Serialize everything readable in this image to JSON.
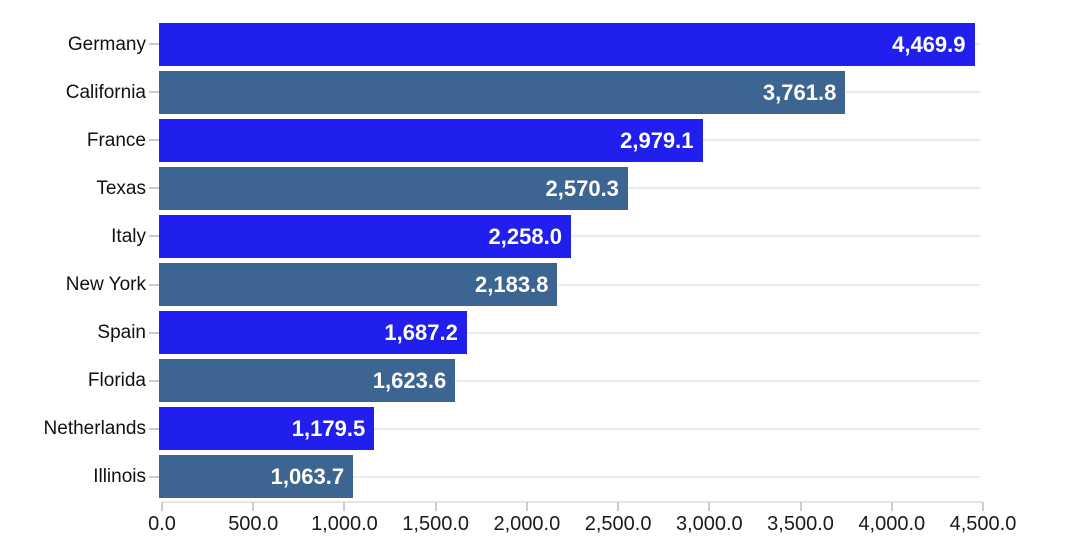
{
  "chart_data": {
    "type": "bar",
    "orientation": "horizontal",
    "title": "",
    "xlabel": "",
    "ylabel": "",
    "xlim": [
      0,
      4500
    ],
    "grid": "horizontal gridline at each category center, plot-width only",
    "legend": "none",
    "categories": [
      "Germany",
      "California",
      "France",
      "Texas",
      "Italy",
      "New York",
      "Spain",
      "Florida",
      "Netherlands",
      "Illinois"
    ],
    "values": [
      4469.9,
      3761.8,
      2979.1,
      2570.3,
      2258.0,
      2183.8,
      1687.2,
      1623.6,
      1179.5,
      1063.7
    ],
    "rows": [
      {
        "category": "Germany",
        "value": 4469.9,
        "value_label": "4,469.9",
        "group": "country"
      },
      {
        "category": "California",
        "value": 3761.8,
        "value_label": "3,761.8",
        "group": "state"
      },
      {
        "category": "France",
        "value": 2979.1,
        "value_label": "2,979.1",
        "group": "country"
      },
      {
        "category": "Texas",
        "value": 2570.3,
        "value_label": "2,570.3",
        "group": "state"
      },
      {
        "category": "Italy",
        "value": 2258.0,
        "value_label": "2,258.0",
        "group": "country"
      },
      {
        "category": "New York",
        "value": 2183.8,
        "value_label": "2,183.8",
        "group": "state"
      },
      {
        "category": "Spain",
        "value": 1687.2,
        "value_label": "1,687.2",
        "group": "country"
      },
      {
        "category": "Florida",
        "value": 1623.6,
        "value_label": "1,623.6",
        "group": "state"
      },
      {
        "category": "Netherlands",
        "value": 1179.5,
        "value_label": "1,179.5",
        "group": "country"
      },
      {
        "category": "Illinois",
        "value": 1063.7,
        "value_label": "1,063.7",
        "group": "state"
      }
    ],
    "x_ticks": [
      "0.0",
      "500.0",
      "1,000.0",
      "1,500.0",
      "2,000.0",
      "2,500.0",
      "3,000.0",
      "3,500.0",
      "4,000.0",
      "4,500.0"
    ],
    "colors": {
      "country_bar": "#211FEE",
      "state_bar": "#3C6691",
      "value_label_text": "#FFFFFF",
      "category_text": "#111111",
      "tick_text": "#1A1A1A",
      "gridline": "#ECECEC",
      "axis_line": "#E6E6E6",
      "tick_mark": "#CCCCCC",
      "background": "#FFFFFF"
    }
  }
}
